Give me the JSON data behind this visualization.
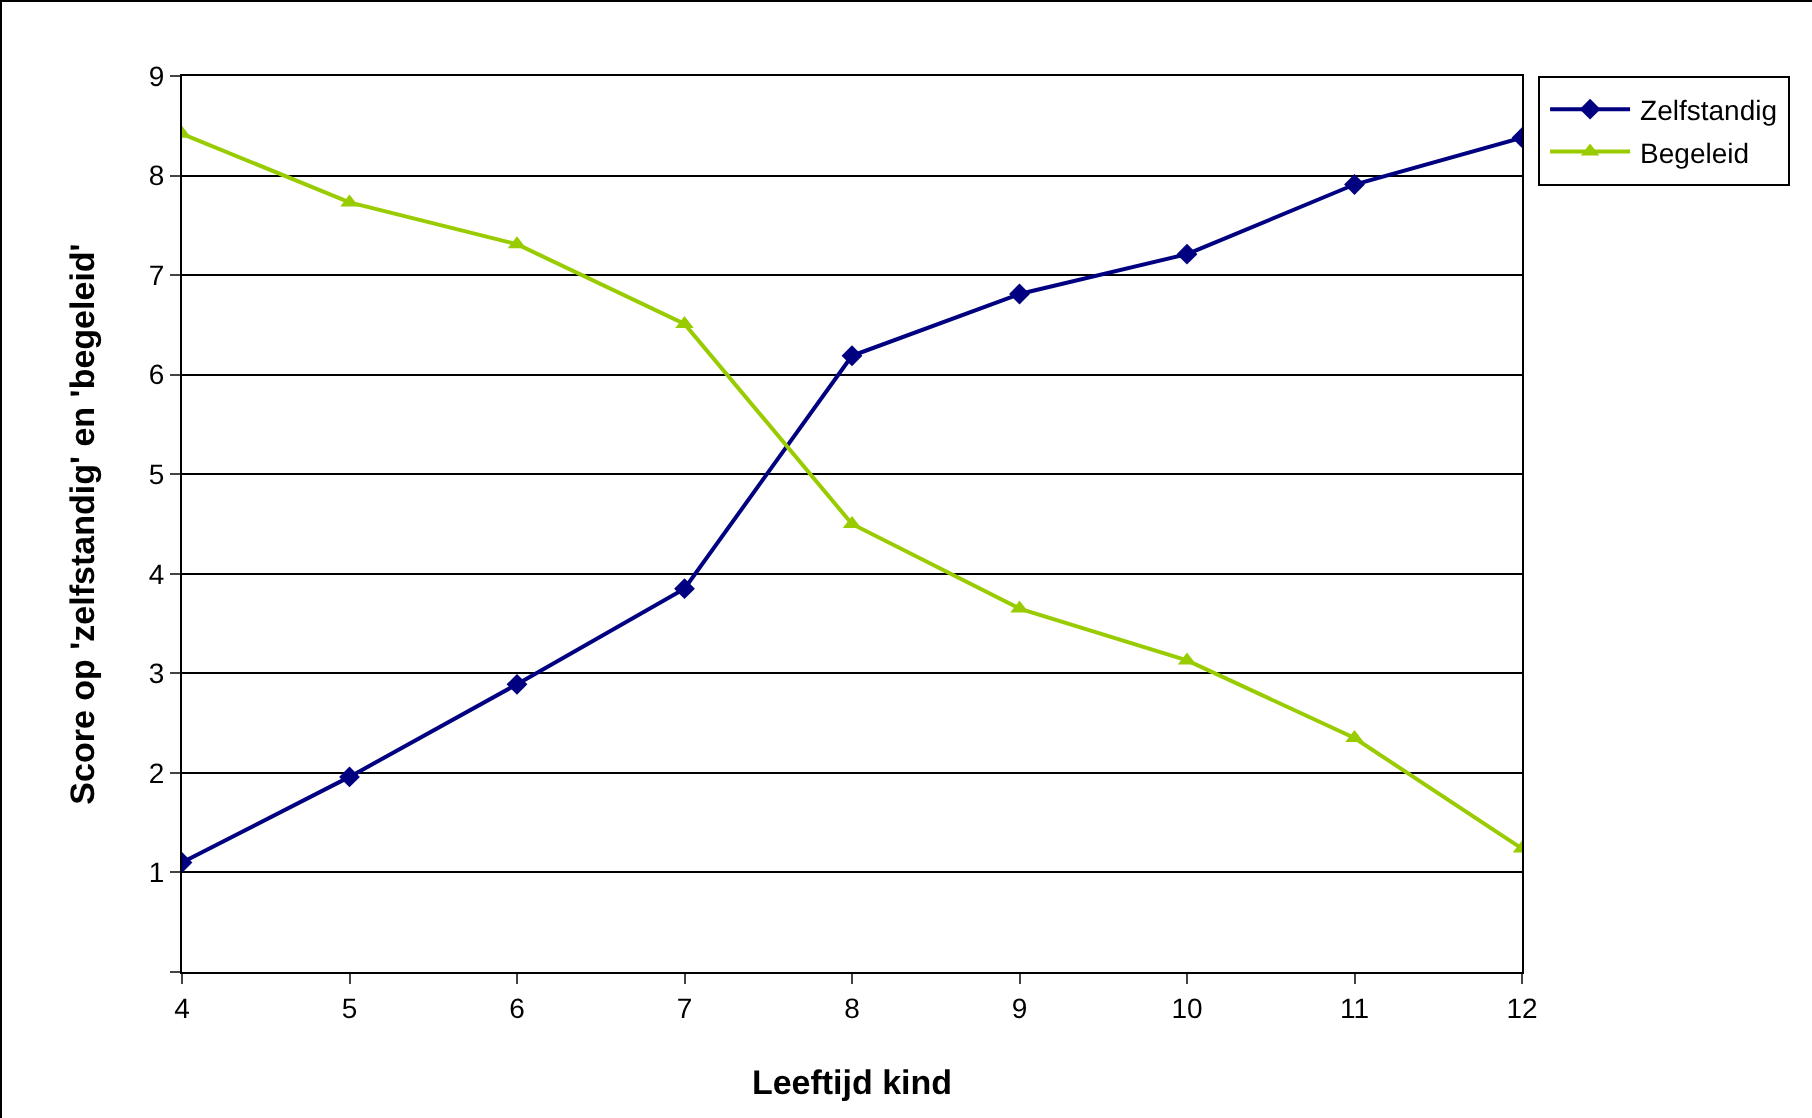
{
  "chart_data": {
    "type": "line",
    "xlabel": "Leeftijd kind",
    "ylabel": "Score op 'zelfstandig' en 'begeleid'",
    "x": [
      4,
      5,
      6,
      7,
      8,
      9,
      10,
      11,
      12
    ],
    "series": [
      {
        "name": "Zelfstandig",
        "color": "#000080",
        "marker": "diamond",
        "values": [
          1.1,
          1.96,
          2.89,
          3.85,
          6.19,
          6.81,
          7.21,
          7.91,
          8.38
        ]
      },
      {
        "name": "Begeleid",
        "color": "#99cc00",
        "marker": "triangle",
        "values": [
          8.42,
          7.73,
          7.31,
          6.51,
          4.5,
          3.65,
          3.13,
          2.35,
          1.24
        ]
      }
    ],
    "xlim": [
      4,
      12
    ],
    "xticks": [
      4,
      5,
      6,
      7,
      8,
      9,
      10,
      11,
      12
    ],
    "ylim": [
      0,
      9
    ],
    "yticks": [
      {
        "value": 0,
        "label": null
      },
      1,
      2,
      3,
      4,
      5,
      6,
      7,
      8,
      9
    ],
    "grid": "y",
    "legend": "right"
  }
}
